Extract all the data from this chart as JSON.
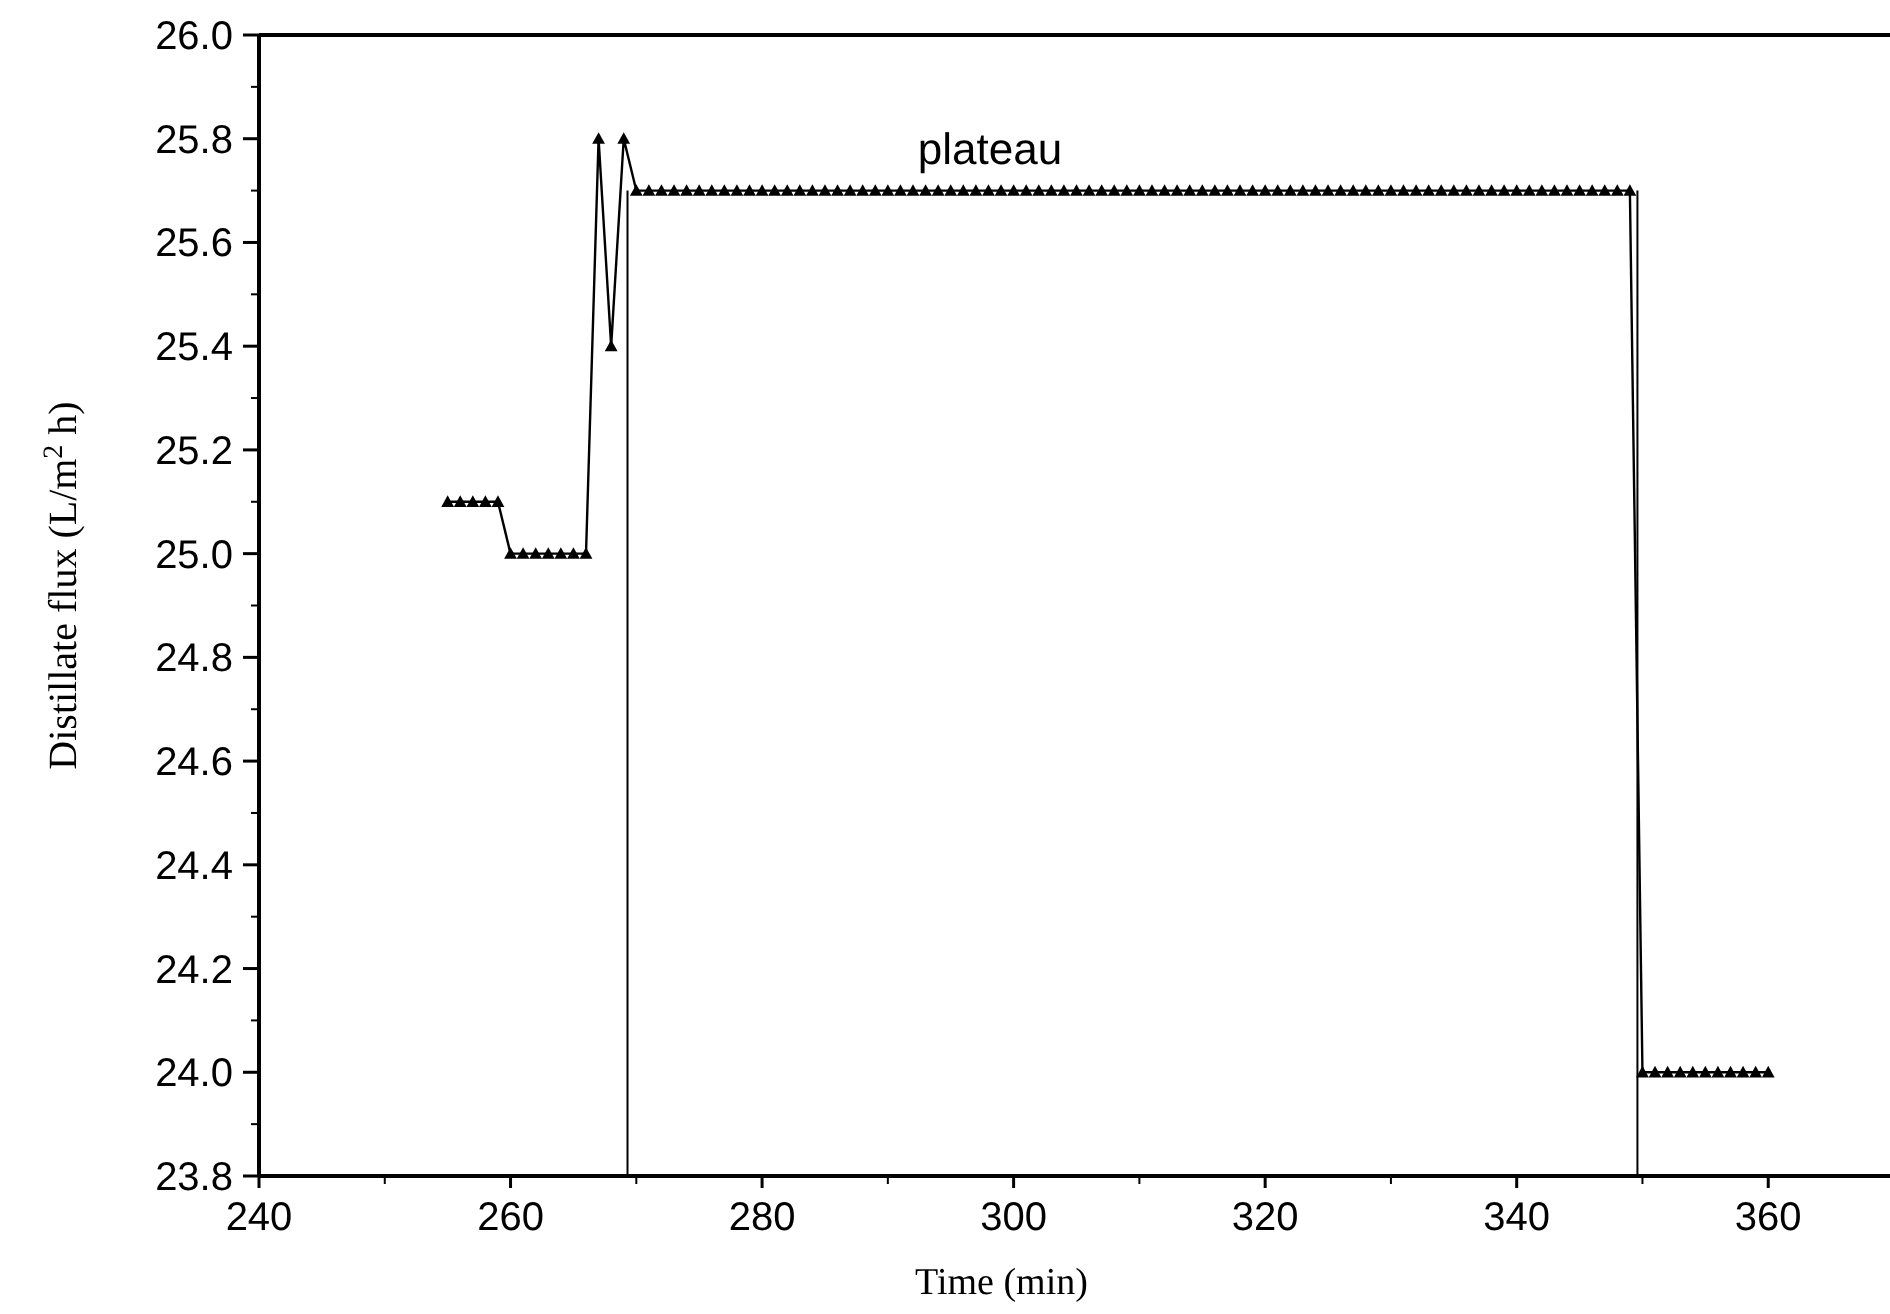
{
  "chart_data": {
    "type": "line",
    "xlabel": "Time (min)",
    "ylabel": "Distillate flux (L/m$^{2}$ h)",
    "xlim": [
      240,
      370
    ],
    "xticks": [
      240,
      260,
      280,
      300,
      320,
      340,
      360
    ],
    "ylim": [
      23.8,
      26
    ],
    "yticks": [
      {
        "value": 23.8,
        "label": "23.8"
      },
      {
        "value": 24,
        "label": "24.0"
      },
      {
        "value": 24.2,
        "label": "24.2"
      },
      {
        "value": 24.4,
        "label": "24.4"
      },
      {
        "value": 24.6,
        "label": "24.6"
      },
      {
        "value": 24.8,
        "label": "24.8"
      },
      {
        "value": 25,
        "label": "25.0"
      },
      {
        "value": 25.2,
        "label": "25.2"
      },
      {
        "value": 25.4,
        "label": "25.4"
      },
      {
        "value": 25.6,
        "label": "25.6"
      },
      {
        "value": 25.8,
        "label": "25.8"
      },
      {
        "value": 26,
        "label": "26.0"
      }
    ],
    "grid": false,
    "marker": "triangle",
    "line_style": "solid",
    "annotations": [
      "plateau"
    ],
    "series": [
      {
        "color": "#000000",
        "x": [
          255,
          256,
          257,
          258,
          259,
          260,
          261,
          262,
          263,
          264,
          265,
          266,
          267,
          268,
          269,
          270,
          271,
          272,
          273,
          274,
          275,
          276,
          277,
          278,
          279,
          280,
          281,
          282,
          283,
          284,
          285,
          286,
          287,
          288,
          289,
          290,
          291,
          292,
          293,
          294,
          295,
          296,
          297,
          298,
          299,
          300,
          301,
          302,
          303,
          304,
          305,
          306,
          307,
          308,
          309,
          310,
          311,
          312,
          313,
          314,
          315,
          316,
          317,
          318,
          319,
          320,
          321,
          322,
          323,
          324,
          325,
          326,
          327,
          328,
          329,
          330,
          331,
          332,
          333,
          334,
          335,
          336,
          337,
          338,
          339,
          340,
          341,
          342,
          343,
          344,
          345,
          346,
          347,
          348,
          349,
          350,
          351,
          352,
          353,
          354,
          355,
          356,
          357,
          358,
          359,
          360
        ],
        "values": [
          25.1,
          25.1,
          25.1,
          25.1,
          25.1,
          25.0,
          25.0,
          25.0,
          25.0,
          25.0,
          25.0,
          25.0,
          25.8,
          25.4,
          25.8,
          25.7,
          25.7,
          25.7,
          25.7,
          25.7,
          25.7,
          25.7,
          25.7,
          25.7,
          25.7,
          25.7,
          25.7,
          25.7,
          25.7,
          25.7,
          25.7,
          25.7,
          25.7,
          25.7,
          25.7,
          25.7,
          25.7,
          25.7,
          25.7,
          25.7,
          25.7,
          25.7,
          25.7,
          25.7,
          25.7,
          25.7,
          25.7,
          25.7,
          25.7,
          25.7,
          25.7,
          25.7,
          25.7,
          25.7,
          25.7,
          25.7,
          25.7,
          25.7,
          25.7,
          25.7,
          25.7,
          25.7,
          25.7,
          25.7,
          25.7,
          25.7,
          25.7,
          25.7,
          25.7,
          25.7,
          25.7,
          25.7,
          25.7,
          25.7,
          25.7,
          25.7,
          25.7,
          25.7,
          25.7,
          25.7,
          25.7,
          25.7,
          25.7,
          25.7,
          25.7,
          25.7,
          25.7,
          25.7,
          25.7,
          25.7,
          25.7,
          25.7,
          25.7,
          25.7,
          25.7,
          24.0,
          24.0,
          24.0,
          24.0,
          24.0,
          24.0,
          24.0,
          24.0,
          24.0,
          24.0,
          24.0
        ]
      },
      {
        "color": "#000000",
        "marker": "none",
        "x": [
          269.3,
          269.3
        ],
        "values": [
          23.8,
          25.7
        ]
      },
      {
        "color": "#000000",
        "marker": "none",
        "x": [
          349.6,
          349.6
        ],
        "values": [
          23.8,
          25.7
        ]
      }
    ]
  }
}
